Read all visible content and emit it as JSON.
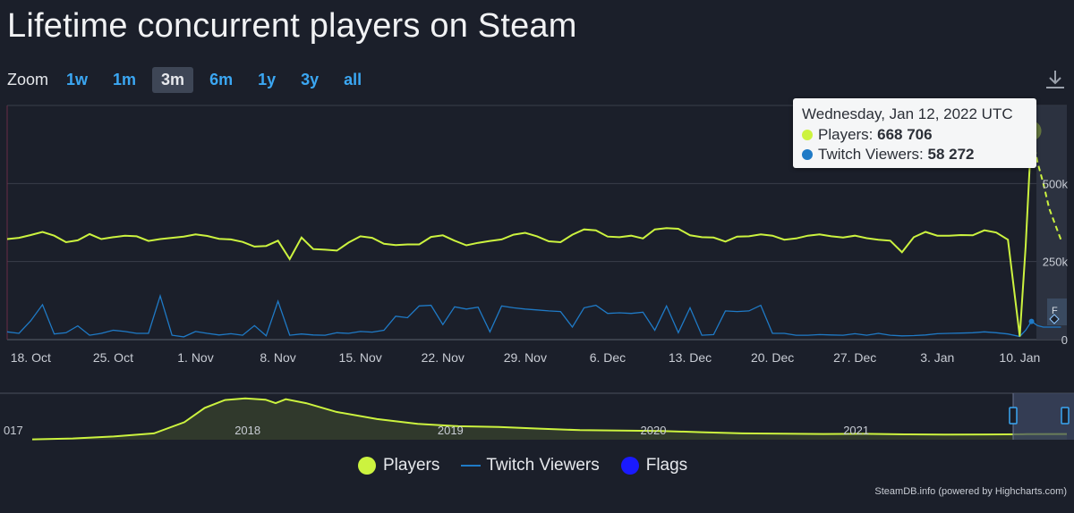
{
  "title": "Lifetime concurrent players on Steam",
  "zoom": {
    "label": "Zoom",
    "buttons": [
      "1w",
      "1m",
      "3m",
      "6m",
      "1y",
      "3y",
      "all"
    ],
    "selected": "3m"
  },
  "tooltip": {
    "date": "Wednesday, Jan 12, 2022 UTC",
    "players_label": "Players: ",
    "players_value": "668 706",
    "twitch_label": "Twitch Viewers: ",
    "twitch_value": "58 272"
  },
  "legend": {
    "players": "Players",
    "twitch": "Twitch Viewers",
    "flags": "Flags"
  },
  "credits": "SteamDB.info (powered by Highcharts.com)",
  "flag_label": "F",
  "colors": {
    "players": "#ccf33f",
    "twitch": "#1f7ac6",
    "flags": "#1a1aff",
    "background": "#1b1f2a",
    "grid": "#3a3f4b",
    "tick_text": "#c8ccd4"
  },
  "chart_data": [
    {
      "type": "line",
      "title": "Lifetime concurrent players on Steam",
      "x_tick_labels": [
        "18. Oct",
        "25. Oct",
        "1. Nov",
        "8. Nov",
        "15. Nov",
        "22. Nov",
        "29. Nov",
        "6. Dec",
        "13. Dec",
        "20. Dec",
        "27. Dec",
        "3. Jan",
        "10. Jan"
      ],
      "y_tick_labels": [
        "0",
        "250k",
        "500k"
      ],
      "ylim": [
        0,
        750000
      ],
      "xlim_days": [
        0,
        90
      ],
      "series": [
        {
          "name": "Players",
          "x": [
            0,
            1,
            2,
            3,
            4,
            5,
            6,
            7,
            8,
            9,
            10,
            11,
            12,
            13,
            14,
            15,
            16,
            17,
            18,
            19,
            20,
            21,
            22,
            23,
            24,
            25,
            26,
            27,
            28,
            29,
            30,
            31,
            32,
            33,
            34,
            35,
            36,
            37,
            38,
            39,
            40,
            41,
            42,
            43,
            44,
            45,
            46,
            47,
            48,
            49,
            50,
            51,
            52,
            53,
            54,
            55,
            56,
            57,
            58,
            59,
            60,
            61,
            62,
            63,
            64,
            65,
            66,
            67,
            68,
            69,
            70,
            71,
            72,
            73,
            74,
            75,
            76,
            77,
            78,
            79,
            80,
            81,
            82,
            83,
            84,
            85,
            86,
            86.5,
            87,
            87.5,
            88,
            88.5,
            89,
            89.5
          ],
          "y": [
            322000,
            326000,
            335000,
            345000,
            333000,
            312000,
            318000,
            338000,
            322000,
            328000,
            333000,
            331000,
            316000,
            322000,
            326000,
            330000,
            337000,
            332000,
            323000,
            321000,
            313000,
            298000,
            300000,
            317000,
            258000,
            327000,
            290000,
            288000,
            285000,
            311000,
            331000,
            326000,
            307000,
            303000,
            305000,
            305000,
            329000,
            334000,
            317000,
            302000,
            310000,
            316000,
            321000,
            336000,
            342000,
            331000,
            315000,
            312000,
            336000,
            353000,
            350000,
            330000,
            328000,
            333000,
            324000,
            353000,
            357000,
            355000,
            334000,
            328000,
            327000,
            314000,
            330000,
            331000,
            337000,
            333000,
            320000,
            324000,
            333000,
            337000,
            331000,
            327000,
            333000,
            325000,
            320000,
            317000,
            280000,
            328000,
            345000,
            333000,
            333000,
            335000,
            334000,
            350000,
            343000,
            320000,
            10000,
            300000,
            668706,
            570000,
            500000,
            420000,
            370000,
            320000
          ]
        },
        {
          "name": "Twitch Viewers",
          "x": [
            0,
            1,
            2,
            3,
            4,
            5,
            6,
            7,
            8,
            9,
            10,
            11,
            12,
            13,
            14,
            15,
            16,
            17,
            18,
            19,
            20,
            21,
            22,
            23,
            24,
            25,
            26,
            27,
            28,
            29,
            30,
            31,
            32,
            33,
            34,
            35,
            36,
            37,
            38,
            39,
            40,
            41,
            42,
            43,
            44,
            45,
            46,
            47,
            48,
            49,
            50,
            51,
            52,
            53,
            54,
            55,
            56,
            57,
            58,
            59,
            60,
            61,
            62,
            63,
            64,
            65,
            66,
            67,
            68,
            69,
            70,
            71,
            72,
            73,
            74,
            75,
            76,
            77,
            78,
            79,
            80,
            81,
            82,
            83,
            84,
            85,
            86,
            86.5,
            87,
            87.5,
            88,
            88.5,
            89,
            89.5
          ],
          "y": [
            25000,
            20000,
            60000,
            112000,
            18000,
            22000,
            44000,
            14000,
            20000,
            30000,
            26000,
            20000,
            20000,
            140000,
            14000,
            9000,
            26000,
            20000,
            15000,
            19000,
            14000,
            45000,
            12000,
            123000,
            14000,
            18000,
            15000,
            14000,
            22000,
            20000,
            26000,
            24000,
            30000,
            75000,
            70000,
            108000,
            110000,
            48000,
            105000,
            98000,
            104000,
            25000,
            108000,
            102000,
            98000,
            95000,
            92000,
            90000,
            40000,
            102000,
            110000,
            84000,
            86000,
            84000,
            88000,
            30000,
            108000,
            22000,
            102000,
            14000,
            16000,
            92000,
            90000,
            92000,
            110000,
            20000,
            20000,
            14000,
            14000,
            16000,
            15000,
            14000,
            19000,
            14000,
            20000,
            14000,
            12000,
            13000,
            15000,
            19000,
            20000,
            21000,
            22000,
            25000,
            22000,
            18000,
            10000,
            30000,
            58272,
            45000,
            40000,
            40000,
            40000,
            40000
          ]
        }
      ]
    },
    {
      "type": "area",
      "title": "",
      "x_tick_labels": [
        "017",
        "2018",
        "2019",
        "2020",
        "2021"
      ],
      "series": [
        {
          "name": "Players",
          "x": [
            2017.0,
            2017.2,
            2017.4,
            2017.6,
            2017.75,
            2017.85,
            2017.95,
            2018.05,
            2018.15,
            2018.2,
            2018.25,
            2018.35,
            2018.5,
            2018.7,
            2018.9,
            2019.1,
            2019.3,
            2019.5,
            2019.7,
            2019.9,
            2020.1,
            2020.3,
            2020.5,
            2020.7,
            2020.9,
            2021.1,
            2021.3,
            2021.5,
            2021.7,
            2021.9,
            2022.1
          ],
          "y": [
            2000,
            8000,
            20000,
            40000,
            110000,
            200000,
            250000,
            260000,
            252000,
            230000,
            255000,
            230000,
            175000,
            130000,
            100000,
            85000,
            80000,
            70000,
            60000,
            58000,
            55000,
            47000,
            40000,
            38000,
            36000,
            37000,
            34000,
            32000,
            33000,
            35000,
            36000
          ]
        }
      ]
    }
  ]
}
